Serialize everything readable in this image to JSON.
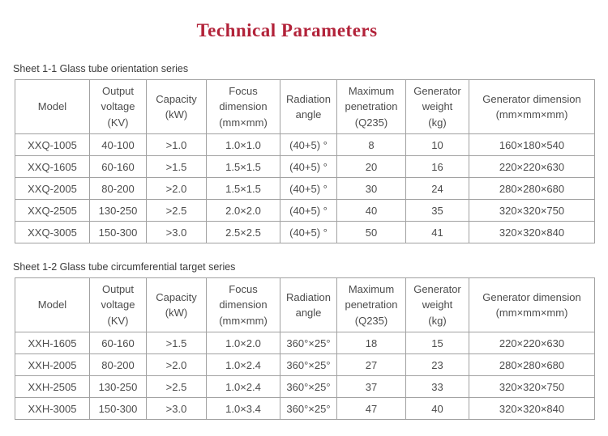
{
  "page": {
    "title": "Technical Parameters",
    "title_color": "#b22239",
    "background": "#ffffff",
    "border_color": "#a1a1a1",
    "text_color": "#4c4c4c"
  },
  "tables": {
    "table1": {
      "caption": "Sheet 1-1 Glass tube orientation series",
      "headers": [
        "Model",
        "Output\nvoltage\n(KV)",
        "Capacity\n(kW)",
        "Focus\ndimension\n(mm×mm)",
        "Radiation\nangle",
        "Maximum\npenetration\n(Q235)",
        "Generator\nweight\n(kg)",
        "Generator dimension\n(mm×mm×mm)"
      ],
      "rows": [
        [
          "XXQ-1005",
          "40-100",
          ">1.0",
          "1.0×1.0",
          "(40+5) °",
          "8",
          "10",
          "160×180×540"
        ],
        [
          "XXQ-1605",
          "60-160",
          ">1.5",
          "1.5×1.5",
          "(40+5) °",
          "20",
          "16",
          "220×220×630"
        ],
        [
          "XXQ-2005",
          "80-200",
          ">2.0",
          "1.5×1.5",
          "(40+5) °",
          "30",
          "24",
          "280×280×680"
        ],
        [
          "XXQ-2505",
          "130-250",
          ">2.5",
          "2.0×2.0",
          "(40+5) °",
          "40",
          "35",
          "320×320×750"
        ],
        [
          "XXQ-3005",
          "150-300",
          ">3.0",
          "2.5×2.5",
          "(40+5) °",
          "50",
          "41",
          "320×320×840"
        ]
      ]
    },
    "table2": {
      "caption": "Sheet 1-2 Glass tube circumferential target series",
      "headers": [
        "Model",
        "Output\nvoltage\n(KV)",
        "Capacity\n(kW)",
        "Focus\ndimension\n(mm×mm)",
        "Radiation\nangle",
        "Maximum\npenetration\n(Q235)",
        "Generator\nweight\n(kg)",
        "Generator dimension\n(mm×mm×mm)"
      ],
      "rows": [
        [
          "XXH-1605",
          "60-160",
          ">1.5",
          "1.0×2.0",
          "360°×25°",
          "18",
          "15",
          "220×220×630"
        ],
        [
          "XXH-2005",
          "80-200",
          ">2.0",
          "1.0×2.4",
          "360°×25°",
          "27",
          "23",
          "280×280×680"
        ],
        [
          "XXH-2505",
          "130-250",
          ">2.5",
          "1.0×2.4",
          "360°×25°",
          "37",
          "33",
          "320×320×750"
        ],
        [
          "XXH-3005",
          "150-300",
          ">3.0",
          "1.0×3.4",
          "360°×25°",
          "47",
          "40",
          "320×320×840"
        ]
      ]
    }
  }
}
